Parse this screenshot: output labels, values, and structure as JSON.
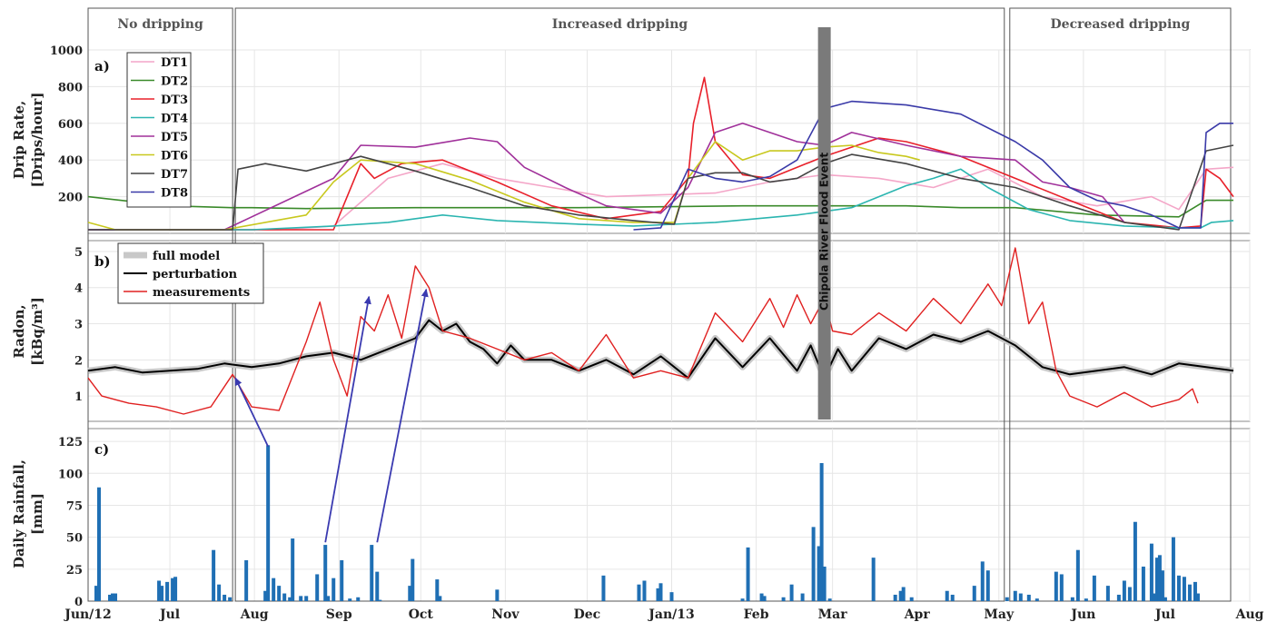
{
  "regions": [
    {
      "label": "No dripping",
      "x0": 0,
      "x1": 53
    },
    {
      "label": "Increased dripping",
      "x0": 54,
      "x1": 336
    },
    {
      "label": "Decreased dripping",
      "x0": 338,
      "x1": 419
    }
  ],
  "x_ticks": [
    {
      "label": "Jun/12",
      "day": 0
    },
    {
      "label": "Jul",
      "day": 30
    },
    {
      "label": "Aug",
      "day": 61
    },
    {
      "label": "Sep",
      "day": 92
    },
    {
      "label": "Oct",
      "day": 122
    },
    {
      "label": "Nov",
      "day": 153
    },
    {
      "label": "Dec",
      "day": 183
    },
    {
      "label": "Jan/13",
      "day": 214
    },
    {
      "label": "Feb",
      "day": 245
    },
    {
      "label": "Mar",
      "day": 273
    },
    {
      "label": "Apr",
      "day": 304
    },
    {
      "label": "May",
      "day": 334
    },
    {
      "label": "Jun",
      "day": 365
    },
    {
      "label": "Jul",
      "day": 395
    },
    {
      "label": "Aug",
      "day": 426
    }
  ],
  "flood_event": {
    "label": "Chipola River Flood Event",
    "day": 270
  },
  "colors": {
    "DT1": "#f4a6c8",
    "DT2": "#3a8a2a",
    "DT3": "#e8202a",
    "DT4": "#2bb5b0",
    "DT5": "#a0309a",
    "DT6": "#c8c81e",
    "DT7": "#444444",
    "DT8": "#3a3aa8",
    "model": "#c8c8c8",
    "perturbation": "#000000",
    "measurements": "#e02020",
    "rain": "#1f6fb4",
    "arrow": "#3a3ab0",
    "flood": "#7a7a7a"
  },
  "chart_data": [
    {
      "type": "line",
      "panel": "a)",
      "ylabel": [
        "Drip Rate,",
        "[Drips/hour]"
      ],
      "ylim": [
        0,
        1000
      ],
      "yticks": [
        200,
        400,
        600,
        800,
        1000
      ],
      "legend": [
        "DT1",
        "DT2",
        "DT3",
        "DT4",
        "DT5",
        "DT6",
        "DT7",
        "DT8"
      ],
      "legend_position": "top-left",
      "series": [
        {
          "name": "DT1",
          "x": [
            0,
            50,
            60,
            70,
            90,
            110,
            130,
            150,
            170,
            190,
            210,
            230,
            250,
            270,
            290,
            310,
            330,
            350,
            370,
            390,
            400,
            410,
            420
          ],
          "y": [
            20,
            20,
            20,
            20,
            40,
            300,
            380,
            300,
            250,
            200,
            210,
            220,
            280,
            320,
            300,
            250,
            350,
            200,
            150,
            200,
            130,
            350,
            360
          ]
        },
        {
          "name": "DT2",
          "x": [
            0,
            30,
            53,
            60,
            80,
            120,
            180,
            240,
            280,
            300,
            320,
            340,
            370,
            400,
            410,
            420
          ],
          "y": [
            200,
            150,
            140,
            140,
            135,
            140,
            140,
            150,
            150,
            150,
            140,
            140,
            100,
            90,
            180,
            180
          ]
        },
        {
          "name": "DT3",
          "x": [
            0,
            50,
            90,
            95,
            100,
            105,
            115,
            130,
            150,
            170,
            190,
            210,
            220,
            222,
            226,
            230,
            240,
            250,
            270,
            290,
            300,
            320,
            340,
            360,
            380,
            400,
            408,
            410,
            415,
            420
          ],
          "y": [
            20,
            20,
            20,
            200,
            380,
            300,
            380,
            400,
            280,
            150,
            80,
            120,
            300,
            600,
            850,
            500,
            320,
            300,
            420,
            520,
            500,
            420,
            300,
            180,
            60,
            30,
            40,
            350,
            300,
            200
          ]
        },
        {
          "name": "DT4",
          "x": [
            0,
            53,
            60,
            90,
            110,
            130,
            150,
            180,
            200,
            230,
            260,
            280,
            300,
            310,
            320,
            330,
            345,
            360,
            380,
            400,
            408,
            412,
            420
          ],
          "y": [
            20,
            20,
            20,
            40,
            60,
            100,
            70,
            50,
            40,
            60,
            100,
            140,
            260,
            300,
            350,
            250,
            130,
            70,
            40,
            30,
            30,
            60,
            70
          ]
        },
        {
          "name": "DT5",
          "x": [
            0,
            50,
            90,
            100,
            120,
            140,
            150,
            160,
            175,
            190,
            210,
            220,
            230,
            240,
            260,
            270,
            280,
            300,
            320,
            340,
            350,
            360,
            372,
            380
          ],
          "y": [
            20,
            20,
            300,
            480,
            470,
            520,
            500,
            360,
            250,
            150,
            110,
            250,
            550,
            600,
            500,
            480,
            550,
            480,
            420,
            400,
            280,
            250,
            200,
            60
          ]
        },
        {
          "name": "DT6",
          "x": [
            0,
            10,
            50,
            80,
            90,
            100,
            120,
            140,
            160,
            180,
            200,
            215,
            220,
            230,
            240,
            250,
            260,
            270,
            280,
            290,
            300,
            305
          ],
          "y": [
            60,
            20,
            20,
            100,
            280,
            400,
            380,
            290,
            170,
            80,
            60,
            60,
            300,
            500,
            400,
            450,
            450,
            470,
            480,
            440,
            420,
            400
          ]
        },
        {
          "name": "DT7",
          "x": [
            0,
            53,
            55,
            65,
            80,
            100,
            120,
            140,
            160,
            180,
            200,
            215,
            220,
            230,
            240,
            250,
            260,
            270,
            280,
            300,
            320,
            340,
            360,
            380,
            400,
            410,
            420
          ],
          "y": [
            20,
            20,
            350,
            380,
            340,
            420,
            340,
            250,
            150,
            100,
            70,
            50,
            300,
            330,
            330,
            280,
            300,
            380,
            430,
            380,
            300,
            250,
            150,
            60,
            20,
            450,
            480
          ]
        },
        {
          "name": "DT8",
          "x": [
            200,
            210,
            220,
            230,
            240,
            250,
            260,
            270,
            280,
            300,
            320,
            340,
            350,
            360,
            370,
            380,
            390,
            400,
            408,
            410,
            415,
            420
          ],
          "y": [
            20,
            30,
            350,
            300,
            280,
            310,
            400,
            680,
            720,
            700,
            650,
            500,
            400,
            250,
            180,
            150,
            100,
            30,
            30,
            550,
            600,
            600
          ]
        }
      ]
    },
    {
      "type": "line",
      "panel": "b)",
      "ylabel": [
        "Radon,",
        "[kBq/m³]"
      ],
      "ylim": [
        0.3,
        5.3
      ],
      "yticks": [
        1,
        2,
        3,
        4,
        5
      ],
      "legend": [
        "full model",
        "perturbation",
        "measurements"
      ],
      "legend_position": "top-left",
      "series": [
        {
          "name": "perturbation",
          "x": [
            0,
            10,
            20,
            30,
            40,
            50,
            60,
            70,
            80,
            90,
            100,
            110,
            120,
            125,
            130,
            135,
            140,
            145,
            150,
            155,
            160,
            170,
            180,
            190,
            200,
            210,
            220,
            230,
            240,
            250,
            260,
            265,
            270,
            275,
            280,
            290,
            300,
            310,
            320,
            330,
            340,
            350,
            360,
            370,
            380,
            390,
            400,
            410,
            420
          ],
          "y": [
            1.7,
            1.8,
            1.65,
            1.7,
            1.75,
            1.9,
            1.8,
            1.9,
            2.1,
            2.2,
            2.0,
            2.3,
            2.6,
            3.1,
            2.8,
            3.0,
            2.5,
            2.3,
            1.9,
            2.4,
            2.0,
            2.0,
            1.7,
            2.0,
            1.6,
            2.1,
            1.5,
            2.6,
            1.8,
            2.6,
            1.7,
            2.4,
            1.5,
            2.3,
            1.7,
            2.6,
            2.3,
            2.7,
            2.5,
            2.8,
            2.4,
            1.8,
            1.6,
            1.7,
            1.8,
            1.6,
            1.9,
            1.8,
            1.7
          ]
        },
        {
          "name": "measurements",
          "x": [
            0,
            5,
            15,
            25,
            35,
            45,
            53,
            60,
            70,
            80,
            85,
            90,
            95,
            100,
            105,
            110,
            115,
            120,
            125,
            130,
            140,
            150,
            160,
            170,
            180,
            190,
            200,
            210,
            220,
            230,
            240,
            250,
            255,
            260,
            265,
            270,
            273,
            280,
            290,
            300,
            310,
            320,
            330,
            335,
            340,
            345,
            350,
            355,
            360,
            370,
            380,
            390,
            400,
            405,
            407
          ],
          "y": [
            1.5,
            1.0,
            0.8,
            0.7,
            0.5,
            0.7,
            1.6,
            0.7,
            0.6,
            2.5,
            3.6,
            2.0,
            1.0,
            3.2,
            2.8,
            3.8,
            2.6,
            4.6,
            4.0,
            2.8,
            2.6,
            2.3,
            2.0,
            2.2,
            1.7,
            2.7,
            1.5,
            1.7,
            1.5,
            3.3,
            2.5,
            3.7,
            2.9,
            3.8,
            3.0,
            3.7,
            2.8,
            2.7,
            3.3,
            2.8,
            3.7,
            3.0,
            4.1,
            3.5,
            5.1,
            3.0,
            3.6,
            1.7,
            1.0,
            0.7,
            1.1,
            0.7,
            0.9,
            1.2,
            0.8
          ]
        }
      ]
    },
    {
      "type": "bar",
      "panel": "c)",
      "ylabel": [
        "Daily Rainfall,",
        "[mm]"
      ],
      "ylim": [
        0,
        135
      ],
      "yticks": [
        0,
        25,
        50,
        75,
        100,
        125
      ],
      "days": [
        3,
        4,
        8,
        9,
        10,
        26,
        27,
        29,
        31,
        32,
        46,
        48,
        50,
        52,
        58,
        65,
        66,
        68,
        70,
        72,
        74,
        75,
        78,
        80,
        84,
        87,
        88,
        90,
        93,
        96,
        99,
        104,
        106,
        107,
        118,
        119,
        128,
        129,
        150,
        189,
        202,
        204,
        209,
        210,
        214,
        240,
        242,
        247,
        248,
        255,
        258,
        262,
        266,
        268,
        269,
        270,
        272,
        288,
        296,
        298,
        299,
        302,
        315,
        317,
        325,
        328,
        330,
        337,
        340,
        342,
        345,
        348,
        355,
        357,
        361,
        363,
        366,
        369,
        374,
        378,
        380,
        382,
        384,
        387,
        390,
        391,
        392,
        393,
        394,
        395,
        398,
        400,
        402,
        404,
        406,
        407
      ],
      "values": [
        12,
        89,
        5,
        6,
        6,
        16,
        12,
        15,
        18,
        19,
        40,
        13,
        5,
        3,
        32,
        8,
        122,
        18,
        12,
        6,
        3,
        49,
        4,
        4,
        21,
        44,
        4,
        18,
        32,
        2,
        3,
        44,
        23,
        1,
        12,
        33,
        17,
        4,
        9,
        20,
        13,
        16,
        10,
        14,
        7,
        2,
        42,
        6,
        4,
        3,
        13,
        6,
        58,
        43,
        108,
        27,
        2,
        34,
        5,
        8,
        11,
        3,
        8,
        5,
        12,
        31,
        24,
        3,
        8,
        6,
        5,
        2,
        23,
        21,
        3,
        40,
        2,
        20,
        12,
        5,
        16,
        11,
        62,
        27,
        45,
        6,
        34,
        36,
        24,
        3,
        50,
        20,
        19,
        13,
        15,
        6
      ]
    }
  ],
  "arrows": [
    {
      "from_day": 66,
      "from_rain": 121,
      "to_day": 54,
      "to_radon": 1.5
    },
    {
      "from_day": 87,
      "from_rain": 46,
      "to_day": 103,
      "to_radon": 3.75
    },
    {
      "from_day": 106,
      "from_rain": 46,
      "to_day": 124,
      "to_radon": 3.95
    }
  ],
  "y_reference": [
    1000,
    200
  ]
}
